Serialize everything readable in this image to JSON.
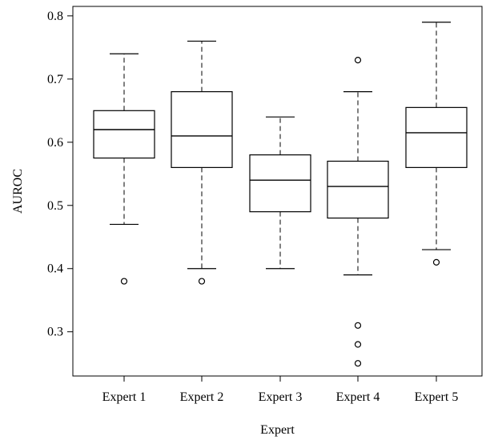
{
  "chart_data": {
    "type": "box",
    "xlabel": "Expert",
    "ylabel": "AUROC",
    "ylim": [
      0.23,
      0.815
    ],
    "yticks": [
      0.3,
      0.4,
      0.5,
      0.6,
      0.7,
      0.8
    ],
    "ytick_labels": [
      "0.3",
      "0.4",
      "0.5",
      "0.6",
      "0.7",
      "0.8"
    ],
    "grid": false,
    "legend": "none",
    "categories": [
      "Expert 1",
      "Expert 2",
      "Expert 3",
      "Expert 4",
      "Expert 5"
    ],
    "boxes": [
      {
        "whisker_low": 0.47,
        "q1": 0.575,
        "median": 0.62,
        "q3": 0.65,
        "whisker_high": 0.74,
        "outliers": [
          0.38
        ]
      },
      {
        "whisker_low": 0.4,
        "q1": 0.56,
        "median": 0.61,
        "q3": 0.68,
        "whisker_high": 0.76,
        "outliers": [
          0.38
        ]
      },
      {
        "whisker_low": 0.4,
        "q1": 0.49,
        "median": 0.54,
        "q3": 0.58,
        "whisker_high": 0.64,
        "outliers": []
      },
      {
        "whisker_low": 0.39,
        "q1": 0.48,
        "median": 0.53,
        "q3": 0.57,
        "whisker_high": 0.68,
        "outliers": [
          0.73,
          0.31,
          0.28,
          0.25
        ]
      },
      {
        "whisker_low": 0.43,
        "q1": 0.56,
        "median": 0.615,
        "q3": 0.655,
        "whisker_high": 0.79,
        "outliers": [
          0.41
        ]
      }
    ]
  }
}
